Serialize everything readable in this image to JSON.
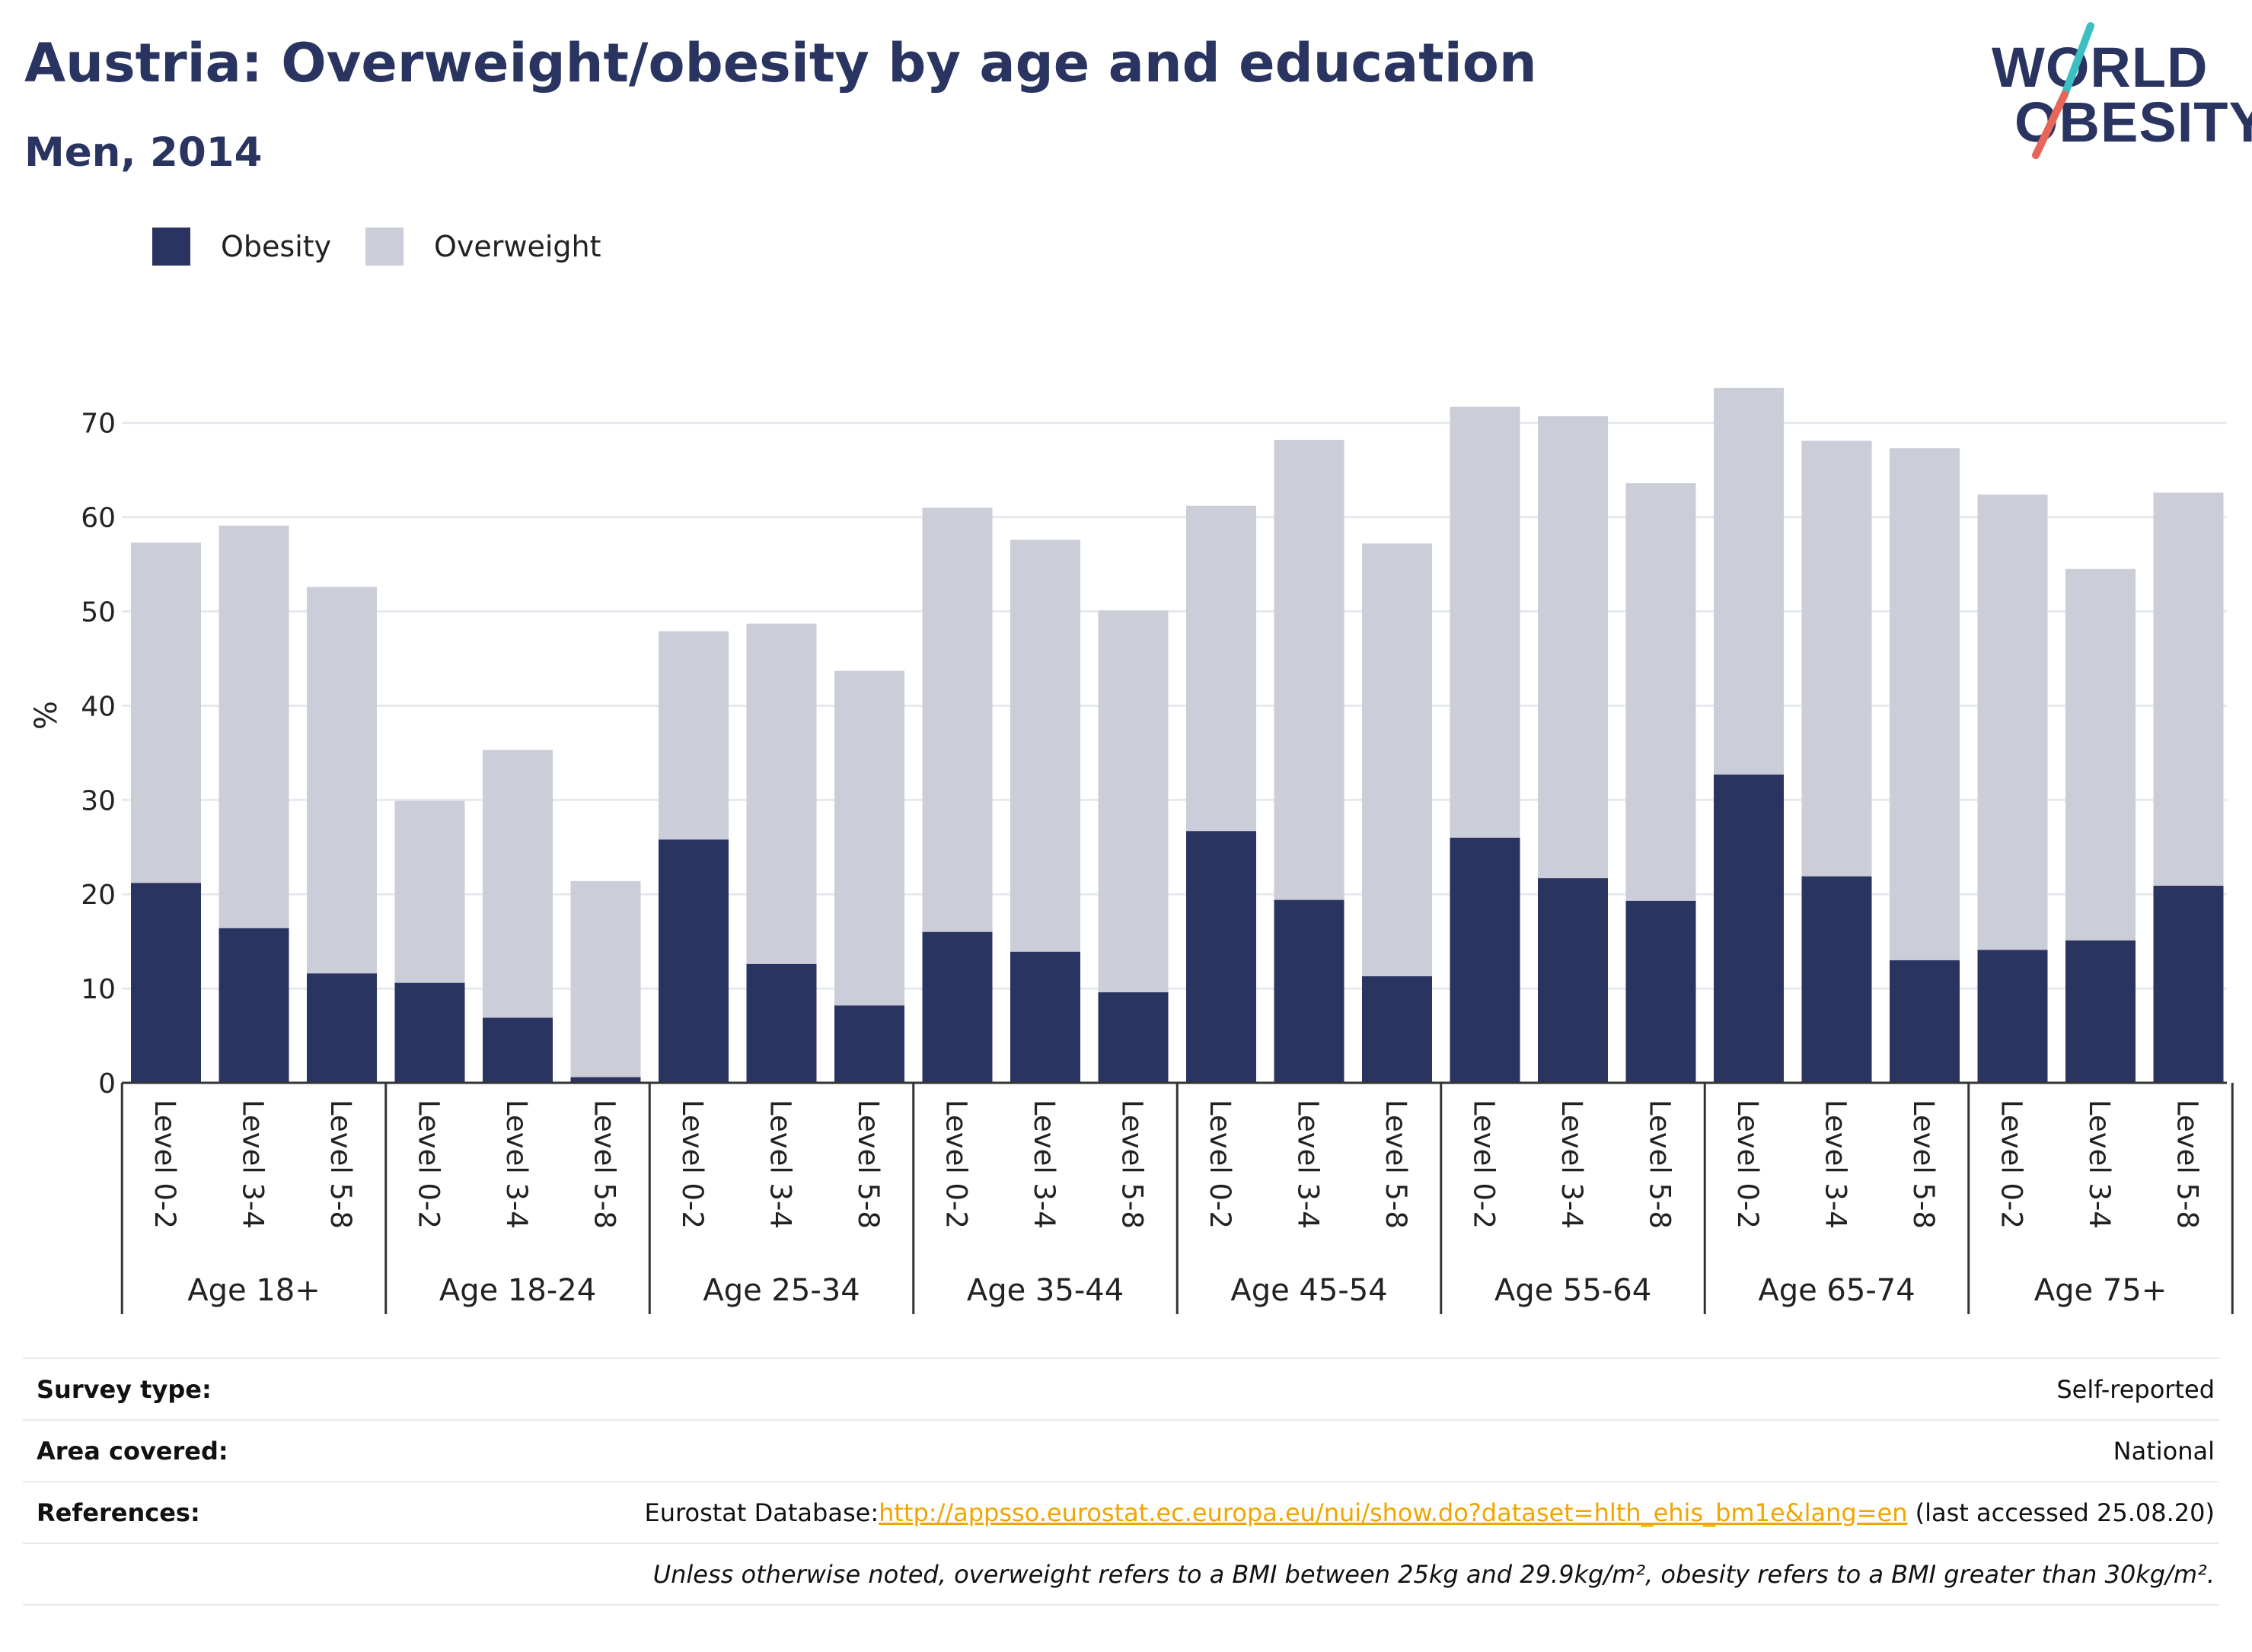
{
  "title": "Austria: Overweight/obesity by age and education",
  "subtitle": "Men, 2014",
  "logo": {
    "line1": "WORLD",
    "line2": "OBESITY",
    "slash_colors": [
      "#3bbfc2",
      "#e8655a"
    ]
  },
  "colors": {
    "obesity": "#2a3460",
    "overweight": "#cbcdd8",
    "title": "#2a3460",
    "link": "#f0a500"
  },
  "legend": {
    "obesity": "Obesity",
    "overweight": "Overweight"
  },
  "chart_data": {
    "type": "bar",
    "stacked": true,
    "ylabel": "%",
    "ylim": [
      0,
      75
    ],
    "yticks": [
      0,
      10,
      20,
      30,
      40,
      50,
      60,
      70
    ],
    "grid": true,
    "legend_position": "top-left",
    "groups": [
      "Age 18+",
      "Age 18-24",
      "Age 25-34",
      "Age 35-44",
      "Age 45-54",
      "Age 55-64",
      "Age 65-74",
      "Age 75+"
    ],
    "levels": [
      "Level 0-2",
      "Level 3-4",
      "Level 5-8"
    ],
    "series": [
      {
        "name": "Obesity",
        "values": [
          21.2,
          16.4,
          11.6,
          10.6,
          6.9,
          0.6,
          25.8,
          12.6,
          8.2,
          16.0,
          13.9,
          9.6,
          26.7,
          19.4,
          11.3,
          26.0,
          21.7,
          19.3,
          32.7,
          21.9,
          13.0,
          14.1,
          15.1,
          20.9
        ]
      },
      {
        "name": "Overweight",
        "values": [
          36.1,
          42.7,
          41.0,
          19.3,
          28.4,
          20.8,
          22.1,
          36.1,
          35.5,
          45.0,
          43.7,
          40.5,
          34.5,
          48.8,
          45.9,
          45.7,
          49.0,
          44.3,
          41.0,
          46.2,
          54.3,
          48.3,
          39.4,
          41.7
        ]
      }
    ]
  },
  "info": {
    "survey_type_label": "Survey type:",
    "survey_type_value": "Self-reported",
    "area_label": "Area covered:",
    "area_value": "National",
    "references_label": "References:",
    "references_prefix": "Eurostat Database:",
    "references_link": "http://appsso.eurostat.ec.europa.eu/nui/show.do?dataset=hlth_ehis_bm1e&lang=en",
    "references_suffix": " (last accessed 25.08.20)",
    "note": "Unless otherwise noted, overweight refers to a BMI between 25kg and 29.9kg/m², obesity refers to a BMI greater than 30kg/m²."
  }
}
